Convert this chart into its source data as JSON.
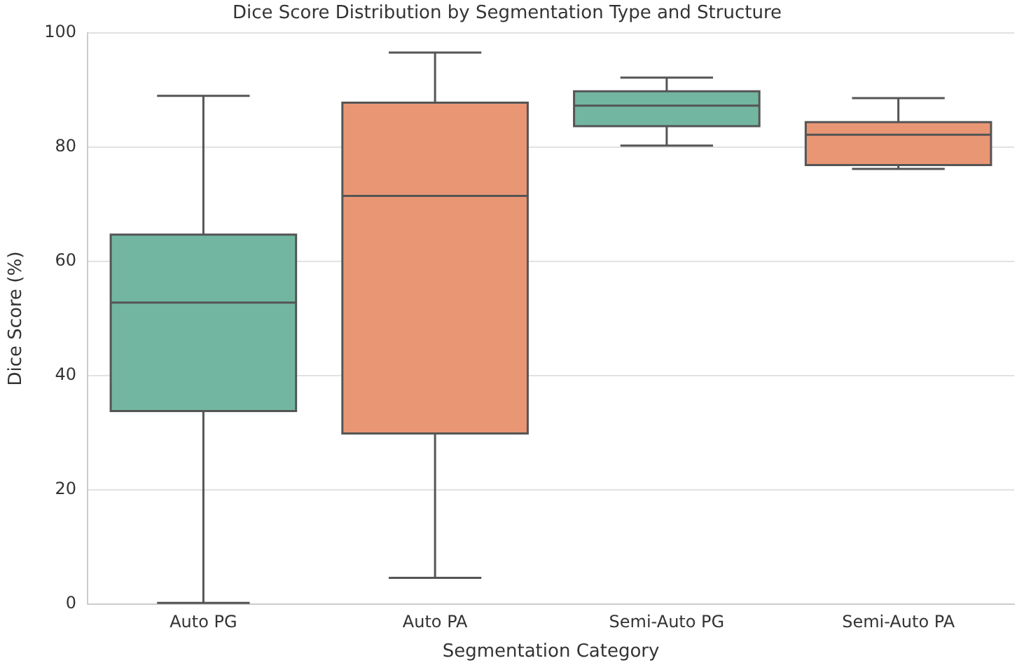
{
  "chart_data": {
    "type": "box",
    "title": "Dice Score Distribution by Segmentation Type and Structure",
    "xlabel": "Segmentation Category",
    "ylabel": "Dice Score (%)",
    "categories": [
      "Auto PG",
      "Auto PA",
      "Semi-Auto PG",
      "Semi-Auto PA"
    ],
    "colors": [
      "#72b6a1",
      "#e99675",
      "#72b6a1",
      "#e99675"
    ],
    "boxes": [
      {
        "low": 0.2,
        "q1": 33.8,
        "median": 52.8,
        "q3": 64.7,
        "high": 89.0
      },
      {
        "low": 4.6,
        "q1": 29.9,
        "median": 71.5,
        "q3": 87.8,
        "high": 96.6
      },
      {
        "low": 80.3,
        "q1": 83.7,
        "median": 87.3,
        "q3": 89.8,
        "high": 92.2
      },
      {
        "low": 76.2,
        "q1": 76.9,
        "median": 82.2,
        "q3": 84.4,
        "high": 88.6
      }
    ],
    "ylim": [
      0,
      100
    ],
    "yticks": [
      0,
      20,
      40,
      60,
      80,
      100
    ],
    "grid": "y",
    "legend": false
  }
}
